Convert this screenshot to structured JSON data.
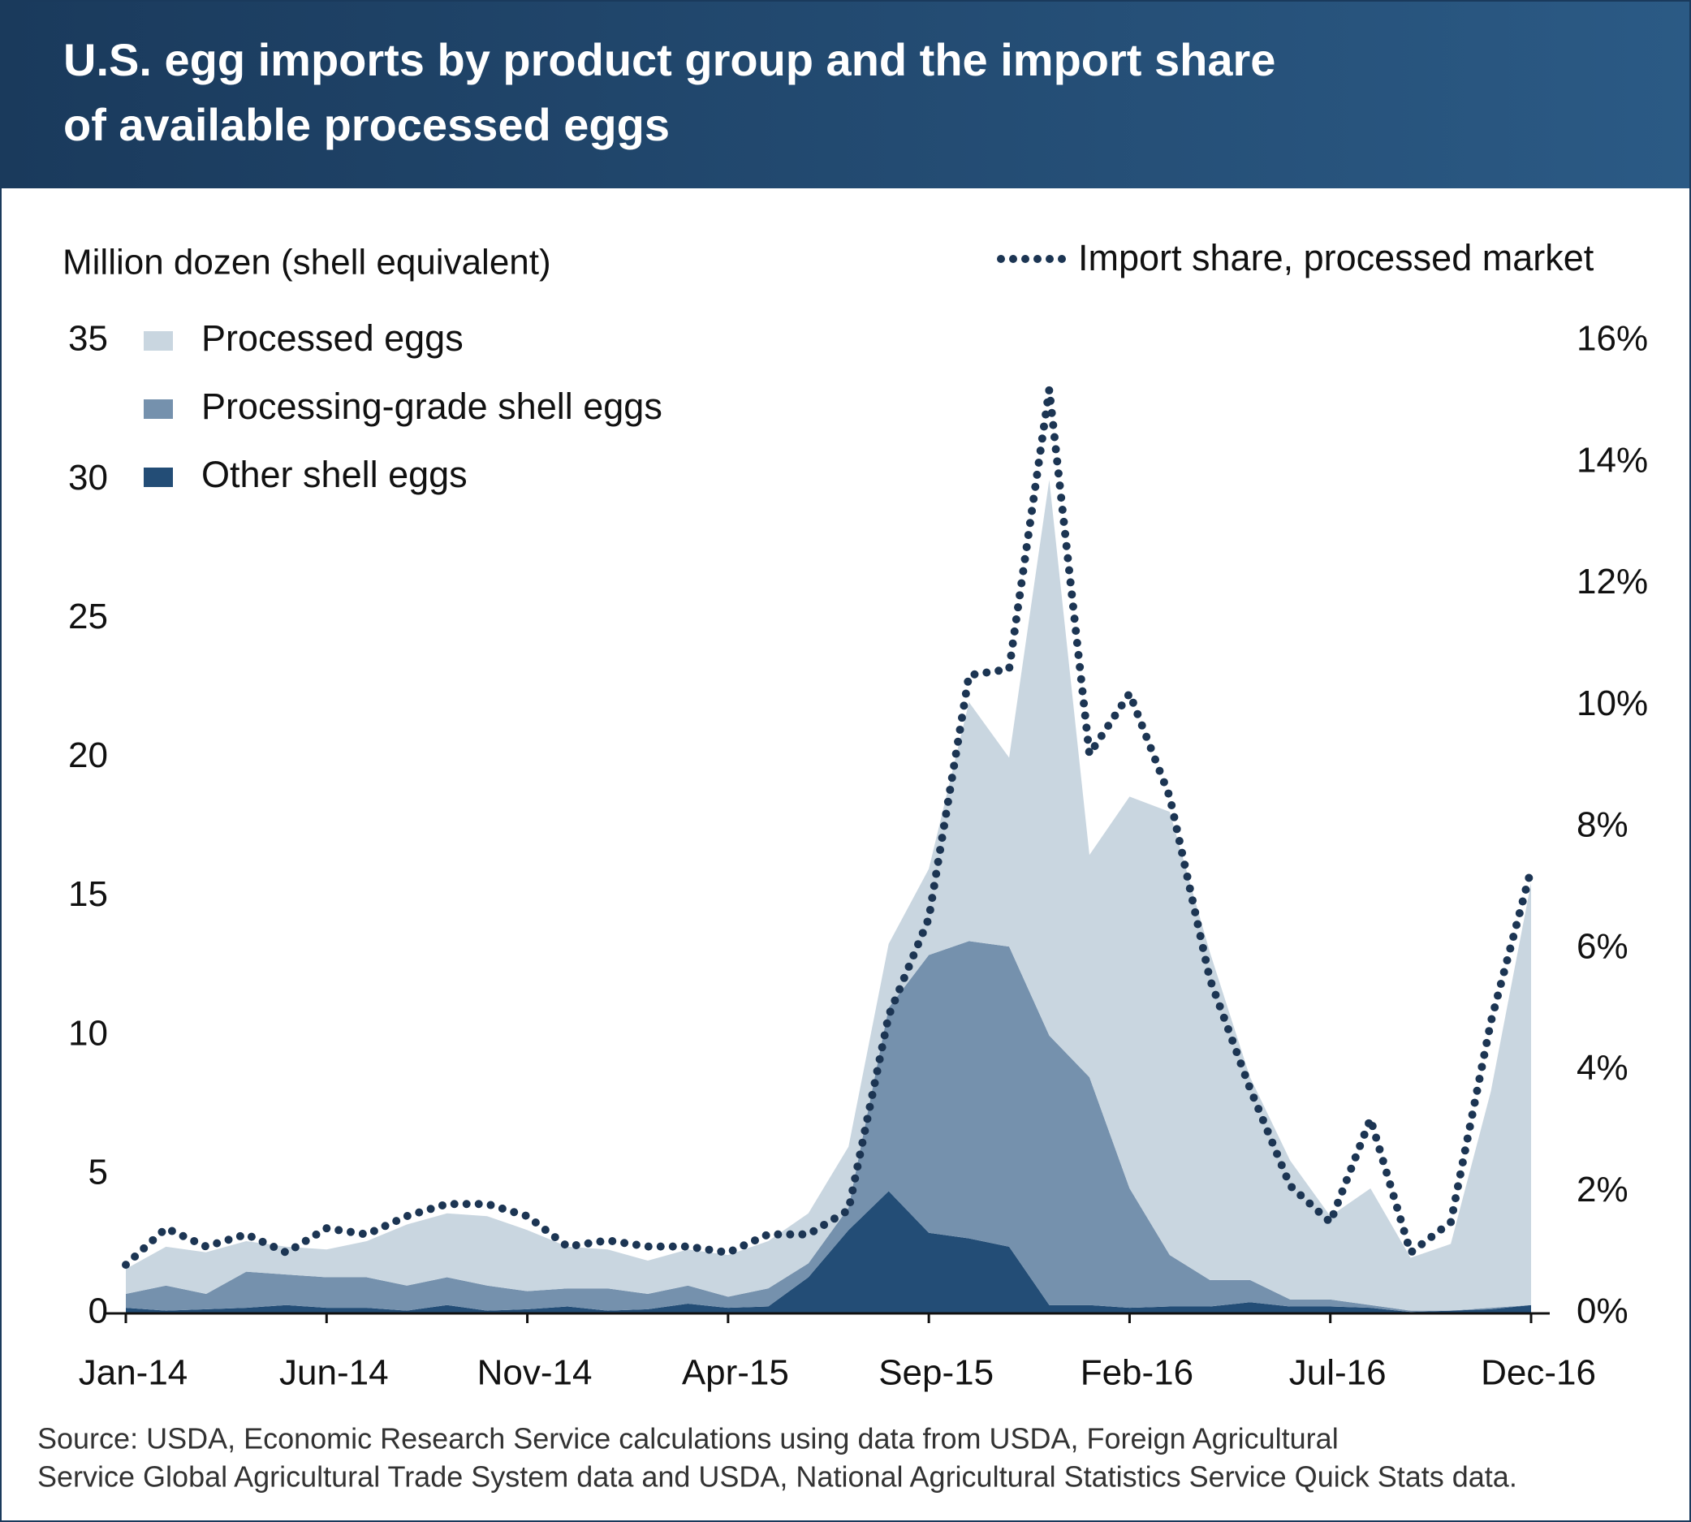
{
  "chart_data": {
    "type": "stacked-area-line",
    "title": [
      "U.S. egg imports by product group and the import share",
      "of available processed eggs"
    ],
    "y_axis_label": "Million dozen (shell equivalent)",
    "categories": [
      "Jan-14",
      null,
      null,
      null,
      null,
      "Jun-14",
      null,
      null,
      null,
      null,
      "Nov-14",
      null,
      null,
      null,
      null,
      "Apr-15",
      null,
      null,
      null,
      null,
      "Sep-15",
      null,
      null,
      null,
      null,
      "Feb-16",
      null,
      null,
      null,
      null,
      "Jul-16",
      null,
      null,
      null,
      null,
      "Dec-16"
    ],
    "series": [
      {
        "name": "Other shell eggs",
        "color": "#234d76",
        "values": [
          0.2,
          0.1,
          0.15,
          0.2,
          0.3,
          0.2,
          0.2,
          0.1,
          0.3,
          0.1,
          0.15,
          0.25,
          0.1,
          0.15,
          0.35,
          0.2,
          0.25,
          1.3,
          3.0,
          4.4,
          2.9,
          2.7,
          2.4,
          0.3,
          0.3,
          0.2,
          0.25,
          0.25,
          0.4,
          0.25,
          0.25,
          0.2,
          0.05,
          0.1,
          0.15,
          0.3
        ]
      },
      {
        "name": "Processing-grade shell eggs",
        "color": "#7591ad",
        "values": [
          0.5,
          0.9,
          0.55,
          1.3,
          1.1,
          1.1,
          1.1,
          0.9,
          1.0,
          0.9,
          0.65,
          0.65,
          0.8,
          0.55,
          0.65,
          0.4,
          0.65,
          0.5,
          0.8,
          6.6,
          10.0,
          10.7,
          10.8,
          9.7,
          8.2,
          4.3,
          1.85,
          0.95,
          0.8,
          0.25,
          0.25,
          0.1,
          0.05,
          0.0,
          0.05,
          0.0
        ]
      },
      {
        "name": "Processed eggs",
        "color": "#c9d6e0",
        "values": [
          0.9,
          1.4,
          1.5,
          1.1,
          1.0,
          1.0,
          1.3,
          2.2,
          2.3,
          2.5,
          2.2,
          1.5,
          1.4,
          1.2,
          1.3,
          1.5,
          1.7,
          1.8,
          2.2,
          2.3,
          3.1,
          8.6,
          6.8,
          20.0,
          8.0,
          14.1,
          15.95,
          11.8,
          7.3,
          5.0,
          3.0,
          4.2,
          1.9,
          2.4,
          7.8,
          15.2
        ]
      },
      {
        "name": "Import share, processed market",
        "color": "#1c3553",
        "axis": "y2",
        "values": [
          0.8,
          1.4,
          1.1,
          1.3,
          1.0,
          1.4,
          1.3,
          1.6,
          1.8,
          1.8,
          1.6,
          1.1,
          1.2,
          1.1,
          1.1,
          1.0,
          1.3,
          1.3,
          1.7,
          4.9,
          6.5,
          10.5,
          10.6,
          15.2,
          9.2,
          10.2,
          8.5,
          5.5,
          3.7,
          2.1,
          1.5,
          3.2,
          1.0,
          1.5,
          4.8,
          7.3
        ]
      }
    ],
    "ylim": [
      0,
      35
    ],
    "yticks": [
      0,
      5,
      10,
      15,
      20,
      25,
      30,
      35
    ],
    "y2lim": [
      0,
      16
    ],
    "y2ticks": [
      {
        "value": 0,
        "label": "0%"
      },
      {
        "value": 2,
        "label": "2%"
      },
      {
        "value": 4,
        "label": "4%"
      },
      {
        "value": 6,
        "label": "6%"
      },
      {
        "value": 8,
        "label": "8%"
      },
      {
        "value": 10,
        "label": "10%"
      },
      {
        "value": 12,
        "label": "12%"
      },
      {
        "value": 14,
        "label": "14%"
      },
      {
        "value": 16,
        "label": "16%"
      }
    ],
    "grid": false,
    "legend": "top-left",
    "source": [
      "Source: USDA, Economic Research Service calculations using data from USDA, Foreign Agricultural",
      "Service Global Agricultural Trade System data and USDA, National Agricultural Statistics Service Quick Stats data."
    ]
  }
}
